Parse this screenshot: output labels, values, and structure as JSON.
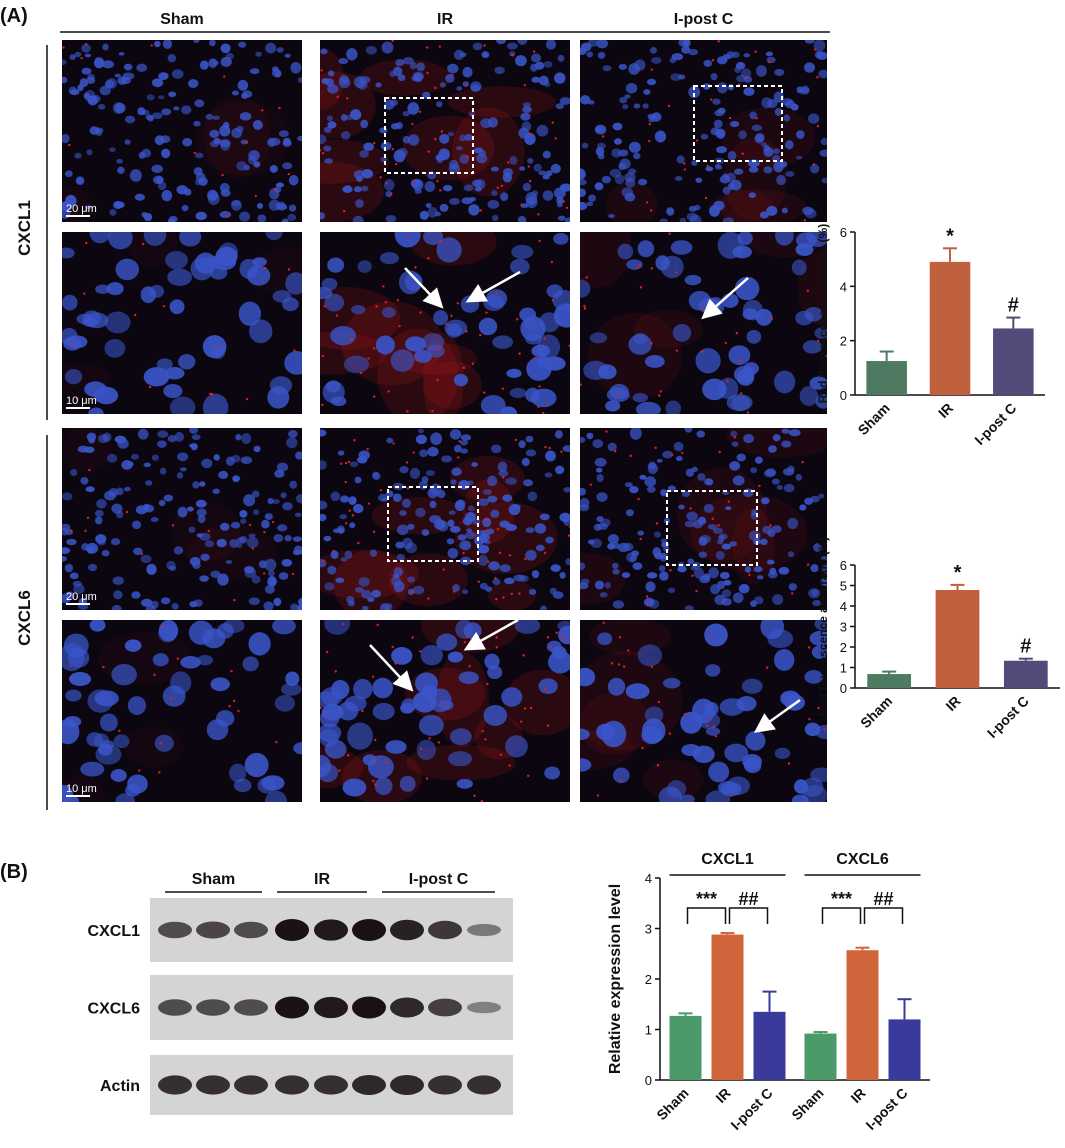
{
  "panel_a": {
    "label": "(A)",
    "columns": [
      "Sham",
      "IR",
      "I-post C"
    ],
    "rows": [
      "CXCL1",
      "CXCL6"
    ],
    "scale_bars": [
      "20 μm",
      "10 μm"
    ]
  },
  "panel_b": {
    "label": "(B)",
    "groups": [
      "Sham",
      "IR",
      "I-post C"
    ],
    "blots": [
      "CXCL1",
      "CXCL6",
      "Actin"
    ]
  },
  "chart_data": [
    {
      "type": "bar",
      "y_label": "Red fluorescence area ratio (%)",
      "categories": [
        "Sham",
        "IR",
        "I-post C"
      ],
      "values": [
        1.25,
        4.9,
        2.45
      ],
      "errors": [
        0.35,
        0.5,
        0.4
      ],
      "significance": [
        null,
        "*",
        "#"
      ],
      "colors": [
        "#4e7a62",
        "#c0603c",
        "#544a7a"
      ],
      "ylim": [
        0,
        6
      ],
      "yticks": [
        0,
        2,
        4,
        6
      ]
    },
    {
      "type": "bar",
      "y_label": "Red fluorescence area ratio (%)",
      "categories": [
        "Sham",
        "IR",
        "I-post C"
      ],
      "values": [
        0.68,
        4.78,
        1.33
      ],
      "errors": [
        0.12,
        0.25,
        0.1
      ],
      "significance": [
        null,
        "*",
        "#"
      ],
      "colors": [
        "#4e7a62",
        "#c0603c",
        "#544a7a"
      ],
      "ylim": [
        0,
        6
      ],
      "yticks": [
        0,
        1,
        2,
        3,
        4,
        5,
        6
      ]
    },
    {
      "type": "grouped_bar",
      "y_label": "Relative expression level",
      "groups": [
        {
          "name": "CXCL1",
          "brackets": [
            "***",
            "##"
          ]
        },
        {
          "name": "CXCL6",
          "brackets": [
            "***",
            "##"
          ]
        }
      ],
      "series": [
        {
          "name": "Sham",
          "color": "#4a9a6a",
          "values": [
            1.27,
            0.92
          ],
          "errors": [
            0.05,
            0.03
          ]
        },
        {
          "name": "IR",
          "color": "#d0643a",
          "values": [
            2.88,
            2.57
          ],
          "errors": [
            0.03,
            0.05
          ]
        },
        {
          "name": "I-post C",
          "color": "#3a3a9a",
          "values": [
            1.35,
            1.2
          ],
          "errors": [
            0.4,
            0.4
          ]
        }
      ],
      "ylim": [
        0,
        4
      ],
      "yticks": [
        0,
        1,
        2,
        3,
        4
      ]
    }
  ]
}
